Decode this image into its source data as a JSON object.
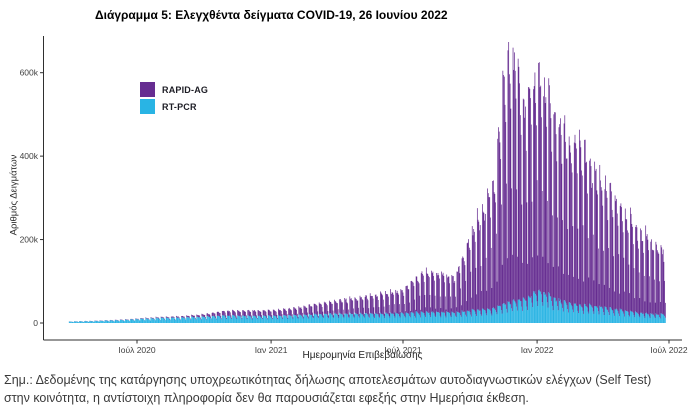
{
  "page": {
    "title": "Διάγραμμα 5: Ελεγχθέντα δείγματα COVID-19, 26 Ιουνίου 2022",
    "note_line1": "Σημ.: Δεδομένης της κατάργησης υποχρεωτικότητας δήλωσης αποτελεσμάτων αυτοδιαγνωστικών ελέγχων (Self Test)",
    "note_line2": "στην κοινότητα, η αντίστοιχη πληροφορία δεν θα παρουσιάζεται εφεξής στην Ημερήσια έκθεση."
  },
  "colors": {
    "background": "#ffffff",
    "axis": "#2f2f2f",
    "tick_label": "#404040",
    "title": "#000000",
    "note": "#3a3a3a",
    "rapid_ag": "#662d91",
    "rt_pcr": "#29b4e4"
  },
  "chart_data": {
    "type": "bar",
    "stacked": true,
    "frequency": "daily",
    "title": "Διάγραμμα 5: Ελεγχθέντα δείγματα COVID-19, 26 Ιουνίου 2022",
    "xlabel": "Ημερομηνία Επιβεβαίωσης",
    "ylabel": "Αριθμός Δειγμάτων",
    "x_tick_labels": [
      "Ιούλ 2020",
      "Ιαν 2021",
      "Ιούλ 2021",
      "Ιαν 2022",
      "Ιούλ 2022"
    ],
    "x_tick_dates": [
      "2020-07-01",
      "2021-01-01",
      "2021-07-01",
      "2022-01-01",
      "2022-07-01"
    ],
    "y_tick_labels": [
      "0",
      "200k",
      "400k",
      "600k"
    ],
    "y_tick_values": [
      0,
      200000,
      400000,
      600000
    ],
    "ylim": [
      0,
      680000
    ],
    "grid": false,
    "legend_position": "inside-top-left",
    "date_range": [
      "2020-03-30",
      "2022-06-26"
    ],
    "model": "daily value = linear interpolation of weekday-peak keyframes × weekday factor (index 0 = Sunday) ± jitter",
    "series": [
      {
        "name": "RAPID-AG",
        "color": "#662d91",
        "weekday_factors": [
          0.22,
          1.0,
          0.97,
          0.93,
          0.88,
          0.8,
          0.5
        ],
        "jitter": 0.09,
        "weekday_peak_keyframes": [
          [
            "2020-03-30",
            300
          ],
          [
            "2020-05-01",
            500
          ],
          [
            "2020-06-01",
            800
          ],
          [
            "2020-07-01",
            1000
          ],
          [
            "2020-08-01",
            2000
          ],
          [
            "2020-09-01",
            3000
          ],
          [
            "2020-10-01",
            6000
          ],
          [
            "2020-11-01",
            12000
          ],
          [
            "2020-12-01",
            13000
          ],
          [
            "2021-01-01",
            14000
          ],
          [
            "2021-02-01",
            17000
          ],
          [
            "2021-03-01",
            24000
          ],
          [
            "2021-04-01",
            32000
          ],
          [
            "2021-05-01",
            40000
          ],
          [
            "2021-06-01",
            48000
          ],
          [
            "2021-07-01",
            58000
          ],
          [
            "2021-08-01",
            100000
          ],
          [
            "2021-08-20",
            95000
          ],
          [
            "2021-09-10",
            90000
          ],
          [
            "2021-10-01",
            185000
          ],
          [
            "2021-10-20",
            260000
          ],
          [
            "2021-11-05",
            330000
          ],
          [
            "2021-11-15",
            520000
          ],
          [
            "2021-11-22",
            608000
          ],
          [
            "2021-12-05",
            590000
          ],
          [
            "2021-12-18",
            470000
          ],
          [
            "2022-01-02",
            560000
          ],
          [
            "2022-01-12",
            500000
          ],
          [
            "2022-01-24",
            455000
          ],
          [
            "2022-02-05",
            430000
          ],
          [
            "2022-02-15",
            400000
          ],
          [
            "2022-03-01",
            390000
          ],
          [
            "2022-03-15",
            360000
          ],
          [
            "2022-04-01",
            310000
          ],
          [
            "2022-04-15",
            280000
          ],
          [
            "2022-05-01",
            250000
          ],
          [
            "2022-05-15",
            220000
          ],
          [
            "2022-06-01",
            190000
          ],
          [
            "2022-06-15",
            170000
          ],
          [
            "2022-06-26",
            165000
          ]
        ]
      },
      {
        "name": "RT-PCR",
        "color": "#29b4e4",
        "weekday_factors": [
          0.5,
          1.0,
          0.97,
          0.94,
          0.9,
          0.85,
          0.65
        ],
        "jitter": 0.06,
        "weekday_peak_keyframes": [
          [
            "2020-03-30",
            3500
          ],
          [
            "2020-05-01",
            5000
          ],
          [
            "2020-06-01",
            7000
          ],
          [
            "2020-07-01",
            10000
          ],
          [
            "2020-08-01",
            13000
          ],
          [
            "2020-09-01",
            14000
          ],
          [
            "2020-10-01",
            16000
          ],
          [
            "2020-11-01",
            19000
          ],
          [
            "2020-12-01",
            18000
          ],
          [
            "2021-01-01",
            18000
          ],
          [
            "2021-02-01",
            20000
          ],
          [
            "2021-03-01",
            22000
          ],
          [
            "2021-04-01",
            24000
          ],
          [
            "2021-05-01",
            24000
          ],
          [
            "2021-06-01",
            24000
          ],
          [
            "2021-07-01",
            25000
          ],
          [
            "2021-08-01",
            28000
          ],
          [
            "2021-09-10",
            27000
          ],
          [
            "2021-10-01",
            32000
          ],
          [
            "2021-10-20",
            34000
          ],
          [
            "2021-11-05",
            38000
          ],
          [
            "2021-11-15",
            48000
          ],
          [
            "2021-11-22",
            52000
          ],
          [
            "2021-12-05",
            58000
          ],
          [
            "2021-12-18",
            64000
          ],
          [
            "2022-01-02",
            82000
          ],
          [
            "2022-01-12",
            76000
          ],
          [
            "2022-01-24",
            62000
          ],
          [
            "2022-02-05",
            55000
          ],
          [
            "2022-02-15",
            50000
          ],
          [
            "2022-03-01",
            46000
          ],
          [
            "2022-03-15",
            44000
          ],
          [
            "2022-04-01",
            40000
          ],
          [
            "2022-04-15",
            36000
          ],
          [
            "2022-05-01",
            32000
          ],
          [
            "2022-05-15",
            28000
          ],
          [
            "2022-06-01",
            24000
          ],
          [
            "2022-06-15",
            22000
          ],
          [
            "2022-06-26",
            24000
          ]
        ]
      }
    ]
  }
}
